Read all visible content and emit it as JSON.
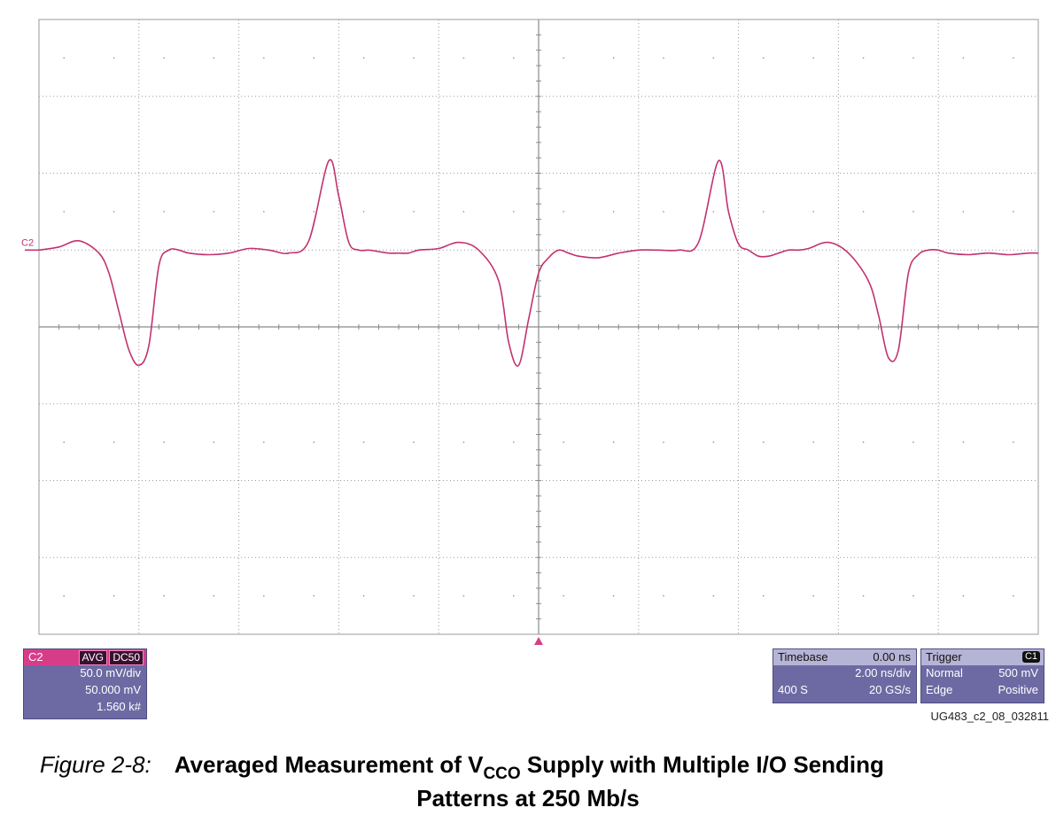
{
  "chart_data": {
    "type": "line",
    "title": "",
    "xlabel": "",
    "ylabel": "",
    "grid": true,
    "x_unit": "ns",
    "y_unit": "mV",
    "xlim": [
      -10,
      10
    ],
    "ylim": [
      -200,
      200
    ],
    "series": [
      {
        "name": "C2",
        "color": "#c2326f",
        "x": [
          -10.0,
          -9.6,
          -9.2,
          -8.8,
          -8.6,
          -8.4,
          -8.2,
          -8.0,
          -7.8,
          -7.6,
          -7.4,
          -7.2,
          -7.0,
          -6.6,
          -6.2,
          -5.8,
          -5.4,
          -5.0,
          -4.6,
          -4.2,
          -4.0,
          -3.8,
          -3.6,
          -3.4,
          -3.2,
          -3.0,
          -2.8,
          -2.6,
          -2.4,
          -2.0,
          -1.6,
          -1.2,
          -0.8,
          -0.6,
          -0.4,
          -0.2,
          0.0,
          0.2,
          0.4,
          0.6,
          0.8,
          1.2,
          1.6,
          2.0,
          2.4,
          2.8,
          3.2,
          3.6,
          3.8,
          4.0,
          4.2,
          4.4,
          4.6,
          4.8,
          5.0,
          5.2,
          5.4,
          5.8,
          6.2,
          6.6,
          6.8,
          7.0,
          7.2,
          7.4,
          7.6,
          7.8,
          8.0,
          8.2,
          8.6,
          9.0,
          9.4,
          9.8,
          10.0
        ],
        "y": [
          50,
          52,
          56,
          48,
          35,
          10,
          -15,
          -25,
          -12,
          40,
          50,
          50,
          48,
          47,
          48,
          51,
          50,
          48,
          56,
          108,
          85,
          55,
          50,
          50,
          49,
          48,
          48,
          48,
          50,
          51,
          55,
          50,
          30,
          -10,
          -25,
          5,
          35,
          45,
          50,
          48,
          46,
          45,
          48,
          50,
          50,
          50,
          55,
          108,
          75,
          54,
          50,
          46,
          46,
          48,
          50,
          50,
          51,
          55,
          48,
          30,
          8,
          -20,
          -15,
          35,
          47,
          50,
          50,
          48,
          47,
          48,
          47,
          48,
          48
        ]
      }
    ],
    "annotations": [
      "C2"
    ]
  },
  "channel_panel": {
    "name": "C2",
    "avg_badge": "AVG",
    "coupling_badge": "DC50",
    "scale": "50.0 mV/div",
    "offset": "50.000 mV",
    "sweeps": "1.560 k#",
    "header_color": "#d63d89",
    "body_color": "#6d6aa3"
  },
  "timebase_panel": {
    "label": "Timebase",
    "delay": "0.00 ns",
    "scale": "2.00 ns/div",
    "samples": "400 S",
    "rate": "20 GS/s"
  },
  "trigger_panel": {
    "label": "Trigger",
    "source": "C1",
    "mode": "Normal",
    "level": "500 mV",
    "type": "Edge",
    "slope": "Positive"
  },
  "ref_id": "UG483_c2_08_032811",
  "caption": {
    "label": "Figure 2-8:",
    "title_part1": "Averaged Measurement of V",
    "title_subscript": "CCO",
    "title_part2": " Supply with Multiple I/O Sending",
    "title_line2": "Patterns at 250 Mb/s"
  }
}
